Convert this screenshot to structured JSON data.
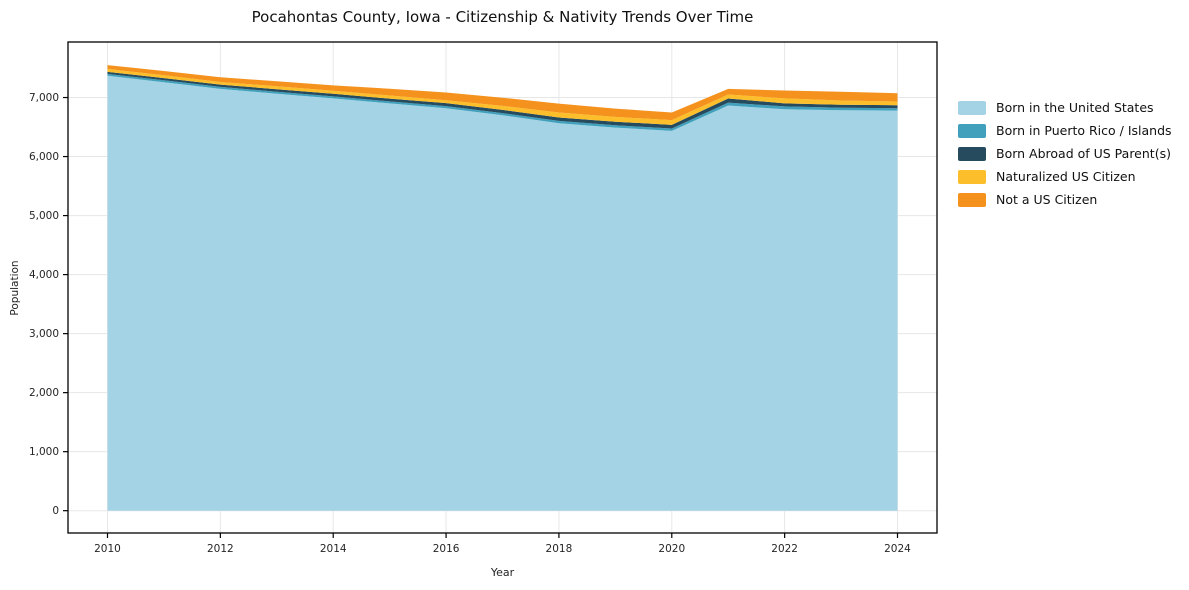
{
  "chart_data": {
    "type": "area",
    "stacked": true,
    "title": "Pocahontas County, Iowa - Citizenship & Nativity Trends Over Time",
    "xlabel": "Year",
    "ylabel": "Population",
    "x": [
      2010,
      2011,
      2012,
      2013,
      2014,
      2015,
      2016,
      2017,
      2018,
      2019,
      2020,
      2021,
      2022,
      2023,
      2024
    ],
    "series": [
      {
        "name": "Born in the United States",
        "color": "#a3d3e5",
        "values": [
          7370,
          7260,
          7146,
          7065,
          6985,
          6900,
          6820,
          6700,
          6565,
          6490,
          6435,
          6865,
          6800,
          6785,
          6780
        ]
      },
      {
        "name": "Born in Puerto Rico / Islands",
        "color": "#41a1bd",
        "values": [
          30,
          32,
          34,
          34,
          34,
          34,
          35,
          37,
          39,
          40,
          40,
          50,
          50,
          42,
          39
        ]
      },
      {
        "name": "Born Abroad of US Parent(s)",
        "color": "#264a5e",
        "values": [
          35,
          38,
          40,
          43,
          46,
          48,
          50,
          53,
          57,
          60,
          62,
          68,
          50,
          52,
          51
        ]
      },
      {
        "name": "Naturalized US Citizen",
        "color": "#fcbf2b",
        "values": [
          50,
          47,
          44,
          48,
          51,
          52,
          50,
          68,
          85,
          82,
          80,
          68,
          85,
          70,
          63
        ]
      },
      {
        "name": "Not a US Citizen",
        "color": "#f5921e",
        "values": [
          65,
          73,
          79,
          85,
          90,
          115,
          130,
          140,
          152,
          140,
          130,
          96,
          135,
          148,
          141
        ]
      }
    ],
    "xticks": [
      2010,
      2012,
      2014,
      2016,
      2018,
      2020,
      2022,
      2024
    ],
    "yticks": [
      0,
      1000,
      2000,
      3000,
      4000,
      5000,
      6000,
      7000
    ],
    "ytick_labels": [
      "0",
      "1,000",
      "2,000",
      "3,000",
      "4,000",
      "5,000",
      "6,000",
      "7,000"
    ],
    "xlim": [
      2009.3,
      2024.7
    ],
    "ylim": [
      -378,
      7941
    ],
    "grid": true,
    "grid_color": "#e7e7e7",
    "axis_color": "#000000",
    "legend_position": "right"
  }
}
